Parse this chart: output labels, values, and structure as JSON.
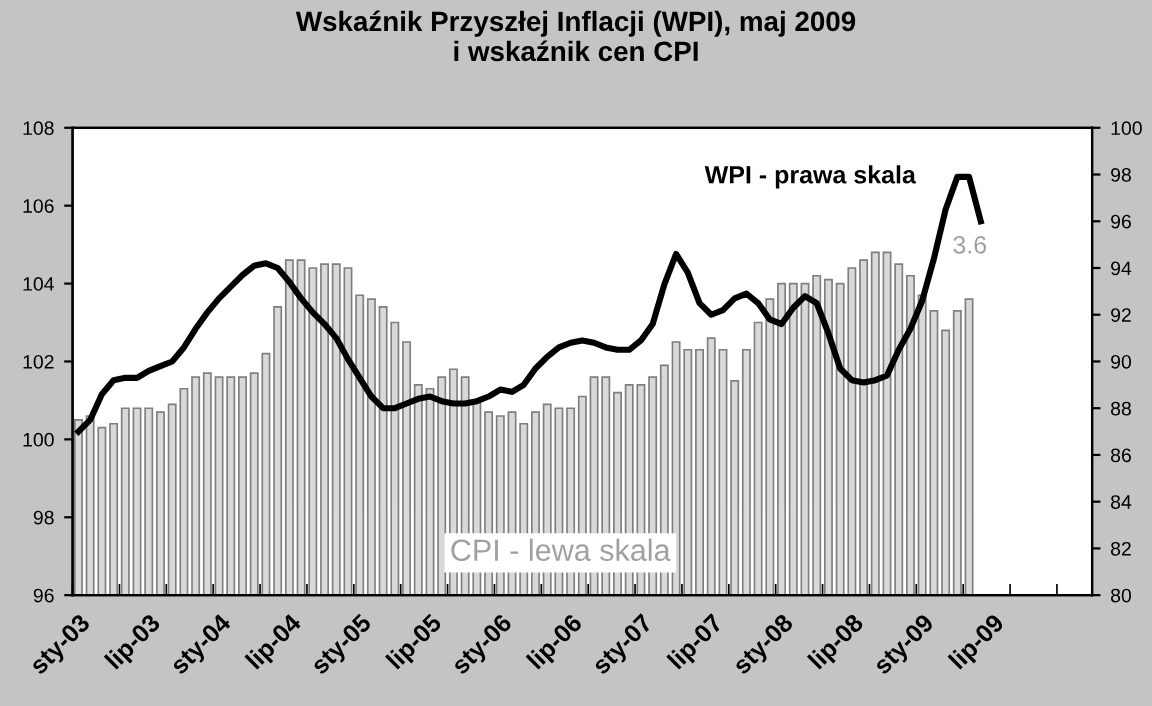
{
  "chart_data": {
    "type": "bar",
    "title": "Wskaźnik Przyszłej Inflacji (WPI), maj 2009\ni wskaźnik cen CPI",
    "categories": [
      "sty-03",
      null,
      null,
      null,
      null,
      null,
      "lip-03",
      null,
      null,
      null,
      null,
      null,
      "sty-04",
      null,
      null,
      null,
      null,
      null,
      "lip-04",
      null,
      null,
      null,
      null,
      null,
      "sty-05",
      null,
      null,
      null,
      null,
      null,
      "lip-05",
      null,
      null,
      null,
      null,
      null,
      "sty-06",
      null,
      null,
      null,
      null,
      null,
      "lip-06",
      null,
      null,
      null,
      null,
      null,
      "sty-07",
      null,
      null,
      null,
      null,
      null,
      "lip-07",
      null,
      null,
      null,
      null,
      null,
      "sty-08",
      null,
      null,
      null,
      null,
      null,
      "lip-08",
      null,
      null,
      null,
      null,
      null,
      "sty-09",
      null,
      null,
      null,
      null,
      null,
      "lip-09",
      null,
      null,
      null,
      null,
      null,
      null,
      null,
      null
    ],
    "series": [
      {
        "name": "CPI - lewa skala",
        "color": "#d9d9d9",
        "values": [
          100.5,
          100.6,
          100.3,
          100.4,
          100.8,
          100.8,
          100.8,
          100.7,
          100.9,
          101.3,
          101.6,
          101.7,
          101.6,
          101.6,
          101.6,
          101.7,
          102.2,
          103.4,
          104.6,
          104.6,
          104.4,
          104.5,
          104.5,
          104.4,
          103.7,
          103.6,
          103.4,
          103.0,
          102.5,
          101.4,
          101.3,
          101.6,
          101.8,
          101.6,
          101.0,
          100.7,
          100.6,
          100.7,
          100.4,
          100.7,
          100.9,
          100.8,
          100.8,
          101.1,
          101.6,
          101.6,
          101.2,
          101.4,
          101.4,
          101.6,
          101.9,
          102.5,
          102.3,
          102.3,
          102.6,
          102.3,
          101.5,
          102.3,
          103.0,
          103.6,
          104.0,
          104.0,
          104.0,
          104.2,
          104.1,
          104.0,
          104.4,
          104.6,
          104.8,
          104.8,
          104.5,
          104.2,
          103.7,
          103.3,
          102.8,
          103.3,
          103.6,
          null,
          null,
          null,
          null,
          null,
          null,
          null,
          null,
          null,
          null
        ],
        "value_labels": [
          null,
          null,
          null,
          null,
          null,
          null,
          null,
          null,
          null,
          null,
          null,
          null,
          null,
          null,
          null,
          null,
          null,
          null,
          null,
          null,
          null,
          null,
          null,
          null,
          null,
          null,
          null,
          null,
          null,
          null,
          null,
          null,
          null,
          null,
          null,
          null,
          null,
          null,
          null,
          null,
          null,
          null,
          null,
          null,
          null,
          null,
          null,
          null,
          null,
          null,
          null,
          null,
          null,
          null,
          null,
          null,
          null,
          null,
          null,
          null,
          null,
          null,
          null,
          null,
          null,
          null,
          null,
          null,
          null,
          null,
          null,
          null,
          null,
          null,
          null,
          null,
          null,
          null,
          null,
          null,
          null,
          null,
          null,
          null,
          null,
          null,
          null
        ]
      },
      {
        "name": "WPI - prawa skala",
        "type": "line",
        "axis": "y2",
        "color": "#000000",
        "values": [
          87.0,
          87.5,
          88.6,
          89.2,
          89.3,
          89.3,
          89.6,
          89.8,
          90.0,
          90.6,
          91.4,
          92.1,
          92.7,
          93.2,
          93.7,
          94.1,
          94.2,
          94.0,
          93.4,
          92.7,
          92.1,
          91.6,
          91.0,
          90.1,
          89.3,
          88.5,
          88.0,
          88.0,
          88.2,
          88.4,
          88.5,
          88.3,
          88.2,
          88.2,
          88.3,
          88.5,
          88.8,
          88.7,
          89.0,
          89.7,
          90.2,
          90.6,
          90.8,
          90.9,
          90.8,
          90.6,
          90.5,
          90.5,
          90.9,
          91.6,
          93.3,
          94.6,
          93.8,
          92.5,
          92.0,
          92.2,
          92.7,
          92.9,
          92.5,
          91.8,
          91.6,
          92.3,
          92.8,
          92.5,
          91.2,
          89.7,
          89.2,
          89.1,
          89.2,
          89.4,
          90.5,
          91.4,
          92.6,
          94.4,
          96.5,
          97.9,
          97.9,
          96.0,
          null,
          null,
          null,
          null,
          null,
          null,
          null,
          null,
          null
        ]
      }
    ],
    "ylim": [
      96,
      108
    ],
    "yticks": [
      96,
      98,
      100,
      102,
      104,
      106,
      108
    ],
    "y2lim": [
      80,
      100
    ],
    "y2ticks": [
      80,
      82,
      84,
      86,
      88,
      90,
      92,
      94,
      96,
      98,
      100
    ],
    "annotations": [
      "3.6"
    ],
    "grid": false,
    "legend": false,
    "marker": "none",
    "line_style": "solid"
  }
}
